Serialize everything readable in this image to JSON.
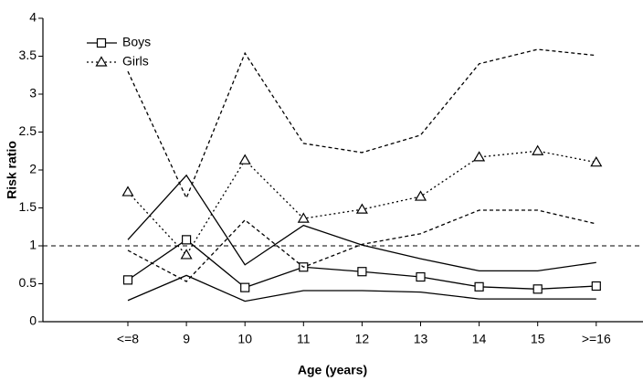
{
  "chart_data": {
    "type": "line",
    "x_label": "Age (years)",
    "y_label": "Risk ratio",
    "categories": [
      "<=8",
      "9",
      "10",
      "11",
      "12",
      "13",
      "14",
      "15",
      ">=16"
    ],
    "series": [
      {
        "name": "Boys",
        "color": "#000000",
        "marker": "square",
        "line_style": "solid",
        "ci_style": "solid",
        "values": [
          0.55,
          1.08,
          0.45,
          0.72,
          0.66,
          0.59,
          0.46,
          0.43,
          0.47
        ],
        "upper": [
          1.08,
          1.93,
          0.75,
          1.27,
          1.01,
          0.83,
          0.67,
          0.67,
          0.78
        ],
        "lower": [
          0.28,
          0.61,
          0.27,
          0.41,
          0.41,
          0.39,
          0.3,
          0.3,
          0.3
        ]
      },
      {
        "name": "Girls",
        "color": "#000000",
        "marker": "triangle",
        "line_style": "dotted",
        "ci_style": "dashed",
        "values": [
          1.71,
          0.88,
          2.13,
          1.36,
          1.48,
          1.65,
          2.17,
          2.25,
          2.1
        ],
        "upper": [
          3.3,
          1.63,
          3.54,
          2.35,
          2.23,
          2.46,
          3.4,
          3.59,
          3.51
        ],
        "lower": [
          0.94,
          0.53,
          1.34,
          0.72,
          1.02,
          1.16,
          1.47,
          1.47,
          1.29
        ]
      }
    ],
    "reference_line": 1,
    "ylim": [
      0,
      4
    ],
    "yticks": [
      0,
      0.5,
      1,
      1.5,
      2,
      2.5,
      3,
      3.5,
      4
    ],
    "grid": false,
    "legend": "upper left"
  }
}
